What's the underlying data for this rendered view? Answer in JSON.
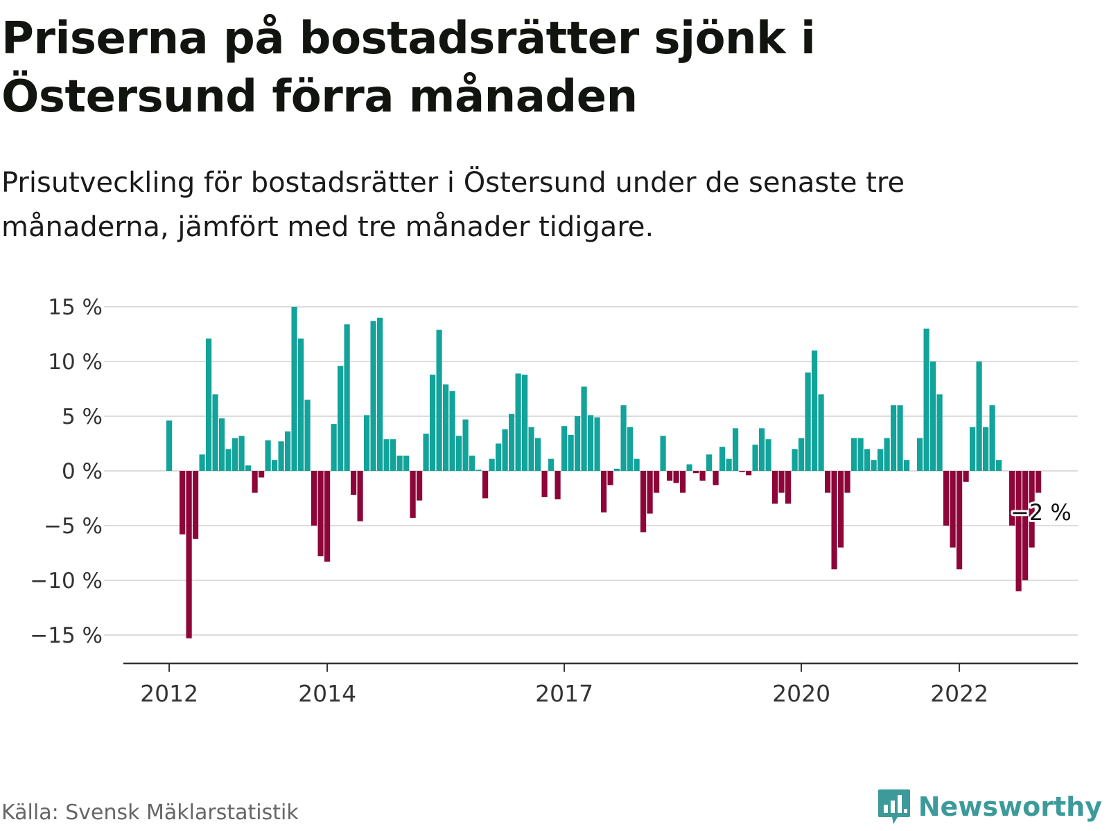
{
  "title": "Priserna på bostadsrätter sjönk i Östersund förra månaden",
  "subtitle": "Prisutveckling för bostadsrätter i Östersund under de senaste tre månaderna, jämfört med tre månader tidigare.",
  "source": "Källa: Svensk Mäklarstatistik",
  "brand": "Newsworthy",
  "colors": {
    "positive": "#12a39a",
    "negative": "#8d0539",
    "grid": "#dddddd",
    "axis": "#333333",
    "brand": "#3c9a9a"
  },
  "icons": {
    "brand_logo": "bar-chart-speech-bubble-icon"
  },
  "chart_data": {
    "type": "bar",
    "title": "Priserna på bostadsrätter sjönk i Östersund förra månaden",
    "ylabel": "",
    "xlabel": "",
    "ylim": [
      -17,
      15.5
    ],
    "y_ticks": [
      15,
      10,
      5,
      0,
      -5,
      -10,
      -15
    ],
    "y_tick_labels": [
      "15 %",
      "10 %",
      "5 %",
      "0 %",
      "−5 %",
      "−10 %",
      "−15 %"
    ],
    "x_ticks": [
      "2012",
      "2014",
      "2017",
      "2020",
      "2022"
    ],
    "first_month": "2012-01",
    "last_value_label": "−2 %",
    "grid": true,
    "series": [
      {
        "values": [
          4.6,
          0,
          -5.8,
          -15.3,
          -6.2,
          1.5,
          12.1,
          7.0,
          4.8,
          2.0,
          3.0,
          3.2,
          0.5,
          -2.0,
          -0.6,
          2.8,
          1.0,
          2.7,
          3.6,
          15.0,
          12.1,
          6.5,
          -5.0,
          -7.8,
          -8.3,
          4.3,
          9.6,
          13.4,
          -2.2,
          -4.6,
          5.1,
          13.7,
          14.0,
          2.9,
          2.9,
          1.4,
          1.4,
          -4.3,
          -2.7,
          3.4,
          8.8,
          12.9,
          7.9,
          7.3,
          3.2,
          4.7,
          1.4,
          0.1,
          -2.5,
          1.1,
          2.5,
          3.8,
          5.2,
          8.9,
          8.8,
          4.0,
          3.0,
          -2.4,
          1.1,
          -2.6,
          4.1,
          3.3,
          5.0,
          7.7,
          5.1,
          4.9,
          -3.8,
          -1.3,
          0.2,
          6.0,
          4.0,
          1.1,
          -5.6,
          -3.9,
          -2.0,
          3.2,
          -0.9,
          -1.1,
          -2.0,
          0.6,
          -0.2,
          -0.9,
          1.5,
          -1.3,
          2.2,
          1.1,
          3.9,
          -0.1,
          -0.4,
          2.4,
          3.9,
          2.9,
          -3.0,
          -2.0,
          -3.0,
          2.0,
          3.0,
          9.0,
          11.0,
          7.0,
          -2.0,
          -9.0,
          -7.0,
          -2.0,
          3.0,
          3.0,
          2.0,
          1.0,
          2.0,
          3.0,
          6.0,
          6.0,
          1.0,
          0,
          3.0,
          13.0,
          10.0,
          7.0,
          -5.0,
          -7.0,
          -9.0,
          -1.0,
          4.0,
          10.0,
          4.0,
          6.0,
          1.0,
          0,
          -5.0,
          -11.0,
          -10.0,
          -7.0,
          -2.0
        ]
      }
    ]
  }
}
